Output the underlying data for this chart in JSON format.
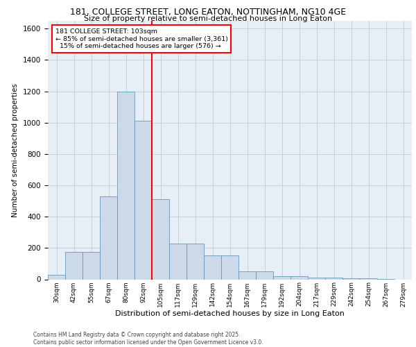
{
  "title_line1": "181, COLLEGE STREET, LONG EATON, NOTTINGHAM, NG10 4GE",
  "title_line2": "Size of property relative to semi-detached houses in Long Eaton",
  "xlabel": "Distribution of semi-detached houses by size in Long Eaton",
  "ylabel": "Number of semi-detached properties",
  "footer_line1": "Contains HM Land Registry data © Crown copyright and database right 2025.",
  "footer_line2": "Contains public sector information licensed under the Open Government Licence v3.0.",
  "annotation_title": "181 COLLEGE STREET: 103sqm",
  "bin_labels": [
    "30sqm",
    "42sqm",
    "55sqm",
    "67sqm",
    "80sqm",
    "92sqm",
    "105sqm",
    "117sqm",
    "129sqm",
    "142sqm",
    "154sqm",
    "167sqm",
    "179sqm",
    "192sqm",
    "204sqm",
    "217sqm",
    "229sqm",
    "242sqm",
    "254sqm",
    "267sqm",
    "279sqm"
  ],
  "bar_values": [
    30,
    175,
    175,
    530,
    1200,
    1010,
    510,
    230,
    230,
    155,
    155,
    50,
    50,
    20,
    20,
    10,
    10,
    5,
    5,
    2,
    0
  ],
  "bar_color": "#ccd9e8",
  "bar_edge_color": "#6699bb",
  "vline_index": 6,
  "vline_color": "red",
  "ylim": [
    0,
    1650
  ],
  "yticks": [
    0,
    200,
    400,
    600,
    800,
    1000,
    1200,
    1400,
    1600
  ],
  "grid_color": "#bbccd8",
  "bg_color": "#e8eef5",
  "pct_smaller": 85,
  "pct_larger": 15,
  "n_smaller": 3361,
  "n_larger": 576
}
